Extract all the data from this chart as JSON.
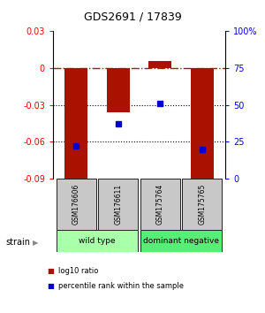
{
  "title": "GDS2691 / 17839",
  "samples": [
    "GSM176606",
    "GSM176611",
    "GSM175764",
    "GSM175765"
  ],
  "log10_ratio": [
    -0.091,
    -0.036,
    0.006,
    -0.091
  ],
  "percentile_rank": [
    22,
    37,
    51,
    20
  ],
  "bar_color": "#aa1100",
  "dot_color": "#0000cc",
  "ylim_left": [
    -0.09,
    0.03
  ],
  "ylim_right": [
    0,
    100
  ],
  "yticks_left": [
    0.03,
    0.0,
    -0.03,
    -0.06,
    -0.09
  ],
  "yticks_right": [
    100,
    75,
    50,
    25,
    0
  ],
  "groups": [
    {
      "label": "wild type",
      "samples": [
        0,
        1
      ],
      "color": "#aaffaa"
    },
    {
      "label": "dominant negative",
      "samples": [
        2,
        3
      ],
      "color": "#55ee77"
    }
  ],
  "group_row_label": "strain",
  "legend_items": [
    {
      "color": "#aa1100",
      "label": "log10 ratio"
    },
    {
      "color": "#0000cc",
      "label": "percentile rank within the sample"
    }
  ],
  "hline_zero_color": "#cc0000",
  "dotted_line_color": "#000000",
  "background_color": "#ffffff",
  "bar_width": 0.55
}
